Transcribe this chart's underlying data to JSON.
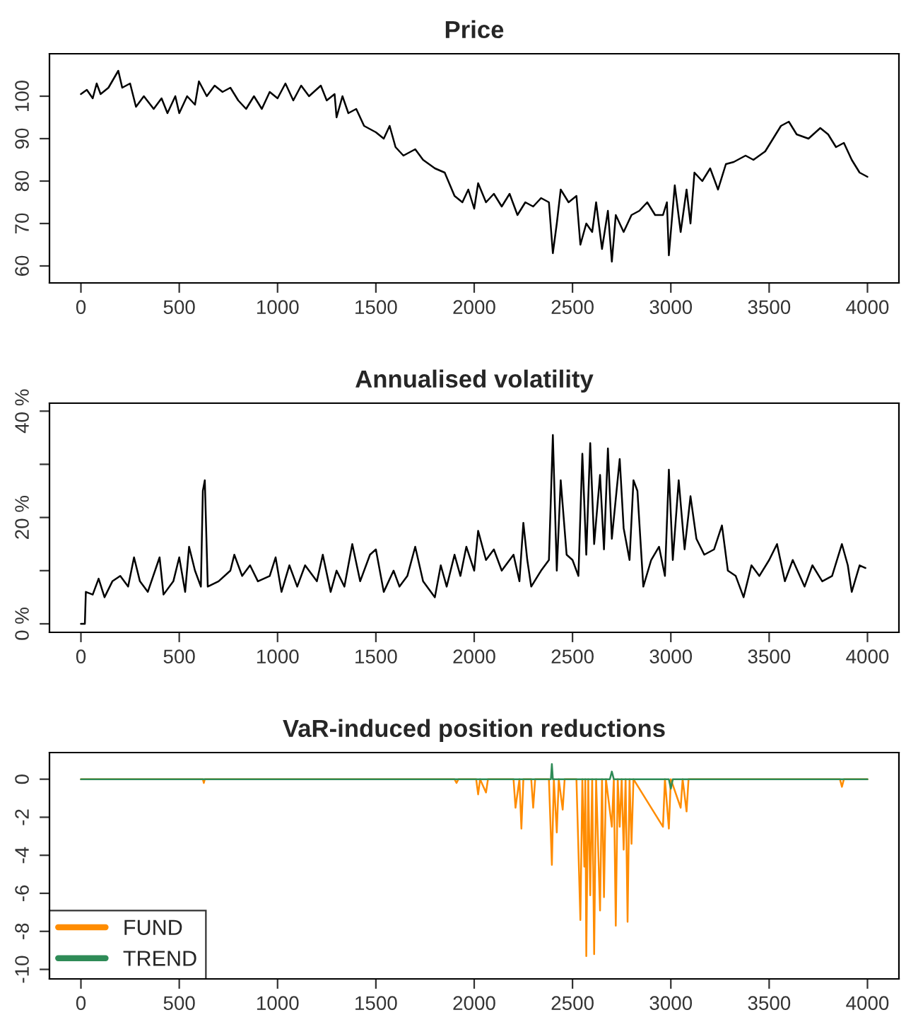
{
  "chart_data": [
    {
      "type": "line",
      "title": "Price",
      "xlim": [
        -160,
        4160
      ],
      "xticks": [
        0,
        500,
        1000,
        1500,
        2000,
        2500,
        3000,
        3500,
        4000
      ],
      "ylim": [
        56,
        110
      ],
      "yticks": [
        60,
        70,
        80,
        90,
        100
      ],
      "grid": false,
      "legend": false,
      "series": [
        {
          "color": "#000000",
          "x": [
            0,
            30,
            60,
            80,
            100,
            140,
            190,
            210,
            250,
            280,
            320,
            370,
            410,
            440,
            480,
            500,
            540,
            580,
            600,
            640,
            680,
            720,
            760,
            800,
            840,
            880,
            920,
            960,
            1000,
            1040,
            1080,
            1120,
            1160,
            1220,
            1250,
            1290,
            1300,
            1330,
            1360,
            1400,
            1440,
            1500,
            1540,
            1570,
            1600,
            1640,
            1700,
            1740,
            1800,
            1850,
            1900,
            1940,
            1970,
            2000,
            2020,
            2060,
            2100,
            2140,
            2180,
            2220,
            2260,
            2300,
            2340,
            2380,
            2400,
            2420,
            2440,
            2480,
            2520,
            2540,
            2570,
            2600,
            2620,
            2650,
            2680,
            2700,
            2720,
            2760,
            2800,
            2840,
            2880,
            2920,
            2960,
            2980,
            2990,
            3020,
            3050,
            3080,
            3100,
            3120,
            3160,
            3200,
            3240,
            3280,
            3320,
            3380,
            3420,
            3480,
            3520,
            3560,
            3600,
            3640,
            3700,
            3760,
            3800,
            3840,
            3880,
            3920,
            3960,
            4000
          ],
          "values": [
            100.5,
            101.5,
            99.5,
            103,
            100.5,
            102,
            106,
            102,
            103,
            97.5,
            100,
            97,
            99.5,
            96,
            100,
            96,
            100,
            98,
            103.5,
            100,
            102.5,
            101,
            102,
            99,
            97,
            100,
            97,
            101,
            99.5,
            103,
            99,
            102.5,
            100,
            102.5,
            99,
            100.5,
            95,
            100,
            96,
            97,
            93,
            91.5,
            90,
            93,
            88,
            86,
            87.5,
            85,
            83,
            82,
            76.5,
            75,
            78,
            73.5,
            79.5,
            75,
            77,
            74,
            77,
            72,
            75,
            74,
            76,
            75,
            63,
            70,
            78,
            75,
            76.5,
            65,
            70,
            68,
            75,
            64,
            73,
            61,
            72,
            68,
            72,
            73,
            75,
            72,
            72,
            75,
            62.5,
            79,
            68,
            78,
            70,
            82,
            80,
            83,
            78,
            84,
            84.5,
            86,
            85,
            87,
            90,
            93,
            94,
            91,
            90,
            92.5,
            91,
            88,
            89,
            85,
            82,
            81
          ]
        }
      ]
    },
    {
      "type": "line",
      "title": "Annualised volatility",
      "xlim": [
        -160,
        4160
      ],
      "xticks": [
        0,
        500,
        1000,
        1500,
        2000,
        2500,
        3000,
        3500,
        4000
      ],
      "ylim": [
        -1.6,
        41.5
      ],
      "yticks": [
        {
          "value": 0,
          "label": "0 %"
        },
        {
          "value": 10,
          "label": null
        },
        {
          "value": 20,
          "label": "20 %"
        },
        {
          "value": 30,
          "label": null
        },
        {
          "value": 40,
          "label": "40 %"
        }
      ],
      "grid": false,
      "legend": false,
      "series": [
        {
          "color": "#000000",
          "x": [
            0,
            20,
            25,
            60,
            90,
            120,
            160,
            200,
            240,
            270,
            300,
            340,
            400,
            420,
            470,
            500,
            530,
            550,
            580,
            610,
            620,
            630,
            645,
            700,
            760,
            780,
            820,
            860,
            900,
            960,
            990,
            1020,
            1060,
            1100,
            1140,
            1200,
            1230,
            1270,
            1300,
            1340,
            1380,
            1420,
            1470,
            1500,
            1540,
            1590,
            1620,
            1660,
            1700,
            1740,
            1800,
            1830,
            1860,
            1900,
            1930,
            1960,
            2000,
            2020,
            2060,
            2100,
            2140,
            2200,
            2230,
            2250,
            2270,
            2290,
            2340,
            2380,
            2400,
            2420,
            2440,
            2470,
            2500,
            2530,
            2550,
            2570,
            2590,
            2610,
            2640,
            2660,
            2680,
            2700,
            2740,
            2760,
            2790,
            2810,
            2830,
            2860,
            2900,
            2940,
            2970,
            2990,
            3010,
            3040,
            3070,
            3100,
            3130,
            3170,
            3220,
            3260,
            3290,
            3330,
            3370,
            3410,
            3450,
            3500,
            3540,
            3580,
            3620,
            3680,
            3720,
            3770,
            3820,
            3870,
            3900,
            3920,
            3960,
            3990
          ],
          "values": [
            0,
            0,
            6,
            5.5,
            8.5,
            5,
            8,
            9,
            7,
            12.5,
            8,
            6,
            12.5,
            5.5,
            8,
            12.5,
            6,
            14.5,
            10,
            7,
            25,
            27,
            7,
            8,
            10,
            13,
            9,
            11,
            8,
            9,
            12.5,
            6,
            11,
            7,
            11,
            8,
            13,
            6,
            10,
            7,
            15,
            8,
            13,
            14,
            6,
            10,
            7,
            9,
            14.5,
            8,
            5,
            11,
            7,
            13,
            9,
            14.5,
            10,
            17.5,
            12,
            14,
            10,
            13,
            8,
            19,
            12,
            7,
            10,
            12,
            35.5,
            10,
            27,
            13,
            12,
            9,
            32,
            13,
            34,
            15,
            28,
            14,
            33,
            16,
            31,
            18,
            12,
            27,
            25,
            7,
            12,
            14.5,
            9,
            29,
            12,
            27,
            14,
            24,
            16,
            13,
            14,
            18.5,
            10,
            9,
            5,
            11,
            9,
            12,
            15,
            8,
            12,
            7,
            11,
            8,
            9,
            15,
            11,
            6,
            11,
            10.5
          ]
        }
      ]
    },
    {
      "type": "line",
      "title": "VaR-induced position reductions",
      "xlim": [
        -160,
        4160
      ],
      "xticks": [
        0,
        500,
        1000,
        1500,
        2000,
        2500,
        3000,
        3500,
        4000
      ],
      "ylim": [
        -10.5,
        1.4
      ],
      "yticks": [
        -10,
        -8,
        -6,
        -4,
        -2,
        0
      ],
      "grid": false,
      "legend": "bottom left",
      "series": [
        {
          "name": "FUND",
          "color": "#ff8c00",
          "x": [
            0,
            620,
            625,
            630,
            1900,
            1910,
            1920,
            2010,
            2020,
            2030,
            2060,
            2070,
            2200,
            2210,
            2230,
            2240,
            2250,
            2290,
            2300,
            2310,
            2380,
            2395,
            2405,
            2420,
            2430,
            2450,
            2460,
            2520,
            2540,
            2550,
            2560,
            2565,
            2570,
            2580,
            2590,
            2600,
            2610,
            2620,
            2640,
            2650,
            2660,
            2670,
            2700,
            2710,
            2720,
            2730,
            2740,
            2750,
            2760,
            2770,
            2780,
            2790,
            2800,
            2810,
            2960,
            2970,
            2990,
            3000,
            3050,
            3060,
            3080,
            3090,
            3120,
            3860,
            3870,
            3880,
            4000
          ],
          "values": [
            0,
            0,
            -0.2,
            0,
            0,
            -0.2,
            0,
            0,
            -0.8,
            0,
            -0.7,
            0,
            0,
            -1.5,
            0,
            -2.6,
            0,
            0,
            -1.5,
            0,
            0,
            -4.5,
            0,
            -2.8,
            0,
            -1.6,
            0,
            0,
            -7.4,
            0,
            -4.6,
            0,
            -9.3,
            0,
            -6.1,
            0,
            -9.2,
            0,
            -6.9,
            0,
            -6.2,
            0,
            -2.5,
            0,
            -7.7,
            0,
            -2.5,
            0,
            -3.7,
            0,
            -7.5,
            0,
            -3.4,
            0,
            -2.5,
            0,
            -2.6,
            0,
            -1.5,
            0,
            -1.7,
            0,
            0,
            0,
            -0.4,
            0,
            0
          ]
        },
        {
          "name": "TREND",
          "color": "#2e8b57",
          "x": [
            0,
            2390,
            2395,
            2400,
            2690,
            2700,
            2710,
            2990,
            3000,
            3010,
            4000
          ],
          "values": [
            0,
            0,
            0.8,
            0,
            0,
            0.4,
            0,
            0,
            -0.5,
            0,
            0
          ]
        }
      ]
    }
  ]
}
